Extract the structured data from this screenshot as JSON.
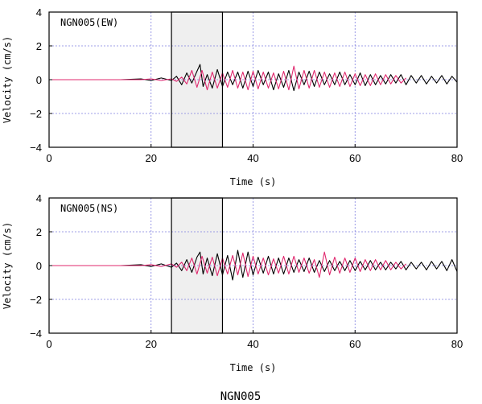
{
  "figure_title": "NGN005",
  "colors": {
    "trace_black": "#000000",
    "trace_red": "#e0286e",
    "grid": "#8080e0",
    "window_fill": "#efefef"
  },
  "chart_data": [
    {
      "type": "line",
      "title": "NGN005(EW)",
      "xlabel": "Time (s)",
      "ylabel": "Velocity (cm/s)",
      "xlim": [
        0,
        80
      ],
      "ylim": [
        -4,
        4
      ],
      "xticks": [
        "0",
        "20",
        "40",
        "60",
        "80"
      ],
      "yticks": [
        "4",
        "2",
        "0",
        "−2",
        "−4"
      ],
      "grid": true,
      "highlight_window_s": [
        24,
        34
      ],
      "series": [
        {
          "color": "#000000",
          "x": [
            0,
            14,
            18,
            20,
            22,
            24,
            25,
            26,
            27,
            28,
            29,
            29.6,
            30.2,
            31,
            32,
            33,
            34,
            35,
            36,
            37,
            38,
            39,
            40,
            41,
            42,
            43,
            44,
            45,
            46,
            47,
            48,
            49,
            50,
            51,
            52,
            53,
            54,
            55,
            56,
            57,
            58,
            59,
            60,
            61,
            62,
            63,
            64,
            65,
            66,
            67,
            68,
            69,
            70,
            71,
            72,
            73,
            74,
            75,
            76,
            77,
            78,
            79,
            80
          ],
          "y": [
            0,
            0,
            0.05,
            -0.05,
            0.1,
            -0.05,
            0.2,
            -0.3,
            0.4,
            -0.2,
            0.5,
            0.9,
            -0.4,
            0.3,
            -0.5,
            0.6,
            -0.4,
            0.45,
            -0.3,
            0.45,
            -0.5,
            0.5,
            -0.4,
            0.55,
            -0.3,
            0.45,
            -0.6,
            0.35,
            -0.45,
            0.55,
            -0.65,
            0.45,
            -0.3,
            0.5,
            -0.4,
            0.45,
            -0.3,
            0.35,
            -0.3,
            0.45,
            -0.3,
            0.3,
            -0.3,
            0.4,
            -0.35,
            0.3,
            -0.3,
            0.25,
            -0.25,
            0.3,
            -0.2,
            0.3,
            -0.3,
            0.25,
            -0.2,
            0.25,
            -0.25,
            0.2,
            -0.2,
            0.25,
            -0.25,
            0.2,
            -0.15
          ]
        },
        {
          "color": "#e0286e",
          "x": [
            0,
            18,
            20,
            22,
            24,
            25,
            26,
            27,
            28,
            29,
            30,
            31,
            32,
            33,
            34,
            35,
            36,
            37,
            38,
            39,
            40,
            41,
            42,
            43,
            44,
            45,
            46,
            47,
            48,
            49,
            50,
            51,
            52,
            53,
            54,
            55,
            56,
            57,
            58,
            59,
            60,
            61,
            62,
            63,
            64,
            65,
            66,
            67,
            68,
            69,
            70
          ],
          "y": [
            0,
            0,
            0.05,
            -0.05,
            0.05,
            -0.1,
            0.15,
            -0.25,
            0.55,
            -0.45,
            0.55,
            -0.6,
            0.45,
            -0.5,
            0.4,
            -0.45,
            0.55,
            -0.5,
            0.45,
            -0.6,
            0.5,
            -0.55,
            0.45,
            -0.5,
            0.4,
            -0.55,
            0.5,
            -0.6,
            0.8,
            -0.55,
            0.55,
            -0.5,
            0.55,
            -0.45,
            0.45,
            -0.45,
            0.4,
            -0.4,
            0.45,
            -0.4,
            0.35,
            -0.35,
            0.3,
            -0.35,
            0.35,
            -0.3,
            0.3,
            -0.25,
            0.25,
            -0.2,
            0.1
          ]
        }
      ]
    },
    {
      "type": "line",
      "title": "NGN005(NS)",
      "xlabel": "Time (s)",
      "ylabel": "Velocity (cm/s)",
      "xlim": [
        0,
        80
      ],
      "ylim": [
        -4,
        4
      ],
      "xticks": [
        "0",
        "20",
        "40",
        "60",
        "80"
      ],
      "yticks": [
        "4",
        "2",
        "0",
        "−2",
        "−4"
      ],
      "grid": true,
      "highlight_window_s": [
        24,
        34
      ],
      "series": [
        {
          "color": "#000000",
          "x": [
            0,
            14,
            18,
            20,
            22,
            24,
            25,
            26,
            27,
            28,
            29,
            29.6,
            30.2,
            31,
            32,
            33,
            34,
            35,
            36,
            37,
            38,
            39,
            40,
            41,
            42,
            43,
            44,
            45,
            46,
            47,
            48,
            49,
            50,
            51,
            52,
            53,
            54,
            55,
            56,
            57,
            58,
            59,
            60,
            61,
            62,
            63,
            64,
            65,
            66,
            67,
            68,
            69,
            70,
            71,
            72,
            73,
            74,
            75,
            76,
            77,
            78,
            79,
            80
          ],
          "y": [
            0,
            0,
            0.05,
            -0.05,
            0.1,
            -0.1,
            0.15,
            -0.3,
            0.35,
            -0.4,
            0.5,
            0.8,
            -0.5,
            0.45,
            -0.6,
            0.7,
            -0.55,
            0.6,
            -0.85,
            0.9,
            -0.7,
            0.8,
            -0.55,
            0.5,
            -0.45,
            0.55,
            -0.5,
            0.45,
            -0.5,
            0.45,
            -0.4,
            0.35,
            -0.35,
            0.45,
            -0.4,
            0.3,
            -0.35,
            0.3,
            -0.3,
            0.25,
            -0.3,
            0.3,
            -0.3,
            0.25,
            -0.25,
            0.3,
            -0.25,
            0.2,
            -0.25,
            0.2,
            -0.2,
            0.25,
            -0.25,
            0.2,
            -0.2,
            0.2,
            -0.25,
            0.25,
            -0.2,
            0.25,
            -0.3,
            0.35,
            -0.35
          ]
        },
        {
          "color": "#e0286e",
          "x": [
            0,
            18,
            20,
            22,
            24,
            25,
            26,
            27,
            28,
            29,
            30,
            31,
            32,
            33,
            34,
            35,
            36,
            37,
            38,
            39,
            40,
            41,
            42,
            43,
            44,
            45,
            46,
            47,
            48,
            49,
            50,
            51,
            52,
            53,
            54,
            55,
            56,
            57,
            58,
            59,
            60,
            61,
            62,
            63,
            64,
            65,
            66,
            67,
            68,
            69,
            70
          ],
          "y": [
            0,
            0,
            0.05,
            -0.05,
            0.1,
            -0.1,
            0.2,
            -0.3,
            0.45,
            -0.5,
            0.55,
            -0.45,
            0.5,
            -0.6,
            0.45,
            -0.5,
            0.6,
            -0.55,
            0.75,
            -0.65,
            0.55,
            -0.5,
            0.45,
            -0.55,
            0.4,
            -0.45,
            0.55,
            -0.5,
            0.55,
            -0.4,
            0.45,
            -0.45,
            0.35,
            -0.7,
            0.8,
            -0.55,
            0.5,
            -0.45,
            0.45,
            -0.4,
            0.45,
            -0.35,
            0.35,
            -0.3,
            0.35,
            -0.25,
            0.3,
            -0.25,
            0.2,
            -0.2,
            0.1
          ]
        }
      ]
    }
  ]
}
